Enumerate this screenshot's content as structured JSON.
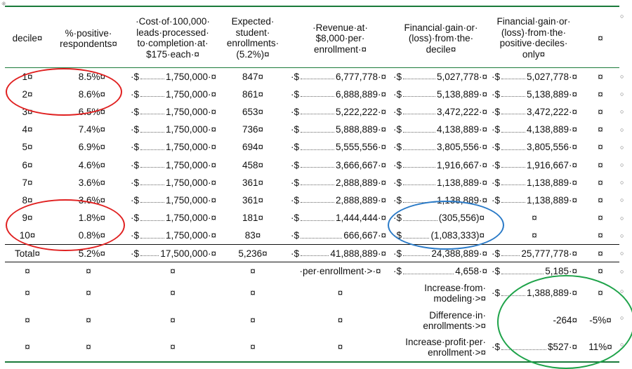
{
  "headers": {
    "decile": "decile¤",
    "pct": [
      "%·positive·",
      "respondents¤"
    ],
    "cost": [
      "·Cost·of·100,000·",
      "leads·processed·",
      "to·completion·at·",
      "$175·each·¤"
    ],
    "enroll": [
      "Expected·",
      "student·",
      "enrollments·",
      "(5.2%)¤"
    ],
    "revenue": [
      "·Revenue·at·",
      "$8,000·per·",
      "enrollment·¤"
    ],
    "gain": [
      "Financial·gain·or·",
      "(loss)·from·the·",
      "decile¤"
    ],
    "gainpos": [
      "Financial·gain·or·",
      "(loss)·from·the·",
      "positive·deciles·",
      "only¤"
    ],
    "extra": "¤"
  },
  "rows": [
    {
      "decile": "1¤",
      "pct": "8.5%¤",
      "cost": "1,750,000·¤",
      "enroll": "847¤",
      "rev": "6,777,778·¤",
      "gain": "5,027,778·¤",
      "gainpos": "5,027,778·¤",
      "x": "¤"
    },
    {
      "decile": "2¤",
      "pct": "8.6%¤",
      "cost": "1,750,000·¤",
      "enroll": "861¤",
      "rev": "6,888,889·¤",
      "gain": "5,138,889·¤",
      "gainpos": "5,138,889·¤",
      "x": "¤"
    },
    {
      "decile": "3¤",
      "pct": "6.5%¤",
      "cost": "1,750,000·¤",
      "enroll": "653¤",
      "rev": "5,222,222·¤",
      "gain": "3,472,222·¤",
      "gainpos": "3,472,222·¤",
      "x": "¤"
    },
    {
      "decile": "4¤",
      "pct": "7.4%¤",
      "cost": "1,750,000·¤",
      "enroll": "736¤",
      "rev": "5,888,889·¤",
      "gain": "4,138,889·¤",
      "gainpos": "4,138,889·¤",
      "x": "¤"
    },
    {
      "decile": "5¤",
      "pct": "6.9%¤",
      "cost": "1,750,000·¤",
      "enroll": "694¤",
      "rev": "5,555,556·¤",
      "gain": "3,805,556·¤",
      "gainpos": "3,805,556·¤",
      "x": "¤"
    },
    {
      "decile": "6¤",
      "pct": "4.6%¤",
      "cost": "1,750,000·¤",
      "enroll": "458¤",
      "rev": "3,666,667·¤",
      "gain": "1,916,667·¤",
      "gainpos": "1,916,667·¤",
      "x": "¤"
    },
    {
      "decile": "7¤",
      "pct": "3.6%¤",
      "cost": "1,750,000·¤",
      "enroll": "361¤",
      "rev": "2,888,889·¤",
      "gain": "1,138,889·¤",
      "gainpos": "1,138,889·¤",
      "x": "¤"
    },
    {
      "decile": "8¤",
      "pct": "3.6%¤",
      "cost": "1,750,000·¤",
      "enroll": "361¤",
      "rev": "2,888,889·¤",
      "gain": "1,138,889·¤",
      "gainpos": "1,138,889·¤",
      "x": "¤"
    },
    {
      "decile": "9¤",
      "pct": "1.8%¤",
      "cost": "1,750,000·¤",
      "enroll": "181¤",
      "rev": "1,444,444·¤",
      "gain": "(305,556)¤",
      "gainpos": "¤",
      "x": "¤"
    },
    {
      "decile": "10¤",
      "pct": "0.8%¤",
      "cost": "1,750,000·¤",
      "enroll": "83¤",
      "rev": "666,667·¤",
      "gain": "(1,083,333)¤",
      "gainpos": "¤",
      "x": "¤"
    }
  ],
  "total": {
    "decile": "Total¤",
    "pct": "5.2%¤",
    "cost": "17,500,000·¤",
    "enroll": "5,236¤",
    "rev": "41,888,889·¤",
    "gain": "24,388,889·¤",
    "gainpos": "25,777,778·¤",
    "x": "¤"
  },
  "dollar": "·$",
  "mark": "¤",
  "summary": [
    {
      "label": "·per·enrollment·>·¤",
      "gain": "4,658·¤",
      "gainpos": "5,185·¤",
      "x": "¤"
    },
    {
      "label": [
        "Increase·from·",
        "modeling·>¤"
      ],
      "gainpos": "1,388,889·¤",
      "x": "¤"
    },
    {
      "label": [
        "Difference·in·",
        "enrollments·>¤"
      ],
      "gainpos": "-264¤",
      "x": "-5%¤"
    },
    {
      "label": [
        "Increase·profit·per·",
        "enrollment·>¤"
      ],
      "gainpos": "$527·¤",
      "x": "11%¤"
    }
  ]
}
